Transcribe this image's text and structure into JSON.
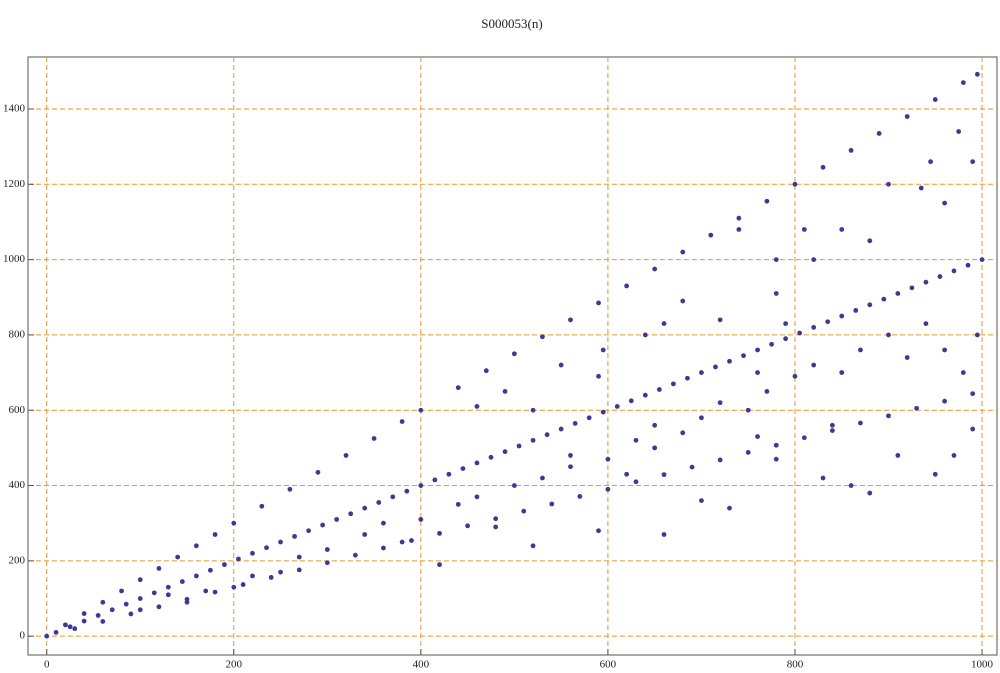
{
  "chart_data": {
    "type": "scatter",
    "title": "S000053(n)",
    "x": [
      0,
      10,
      25,
      40,
      55,
      70,
      85,
      100,
      115,
      130,
      145,
      160,
      175,
      190,
      205,
      220,
      235,
      250,
      265,
      280,
      295,
      310,
      325,
      340,
      355,
      370,
      385,
      400,
      415,
      430,
      445,
      460,
      475,
      490,
      505,
      520,
      535,
      550,
      565,
      580,
      595,
      610,
      625,
      640,
      655,
      670,
      685,
      700,
      715,
      730,
      745,
      760,
      775,
      790,
      805,
      820,
      835,
      850,
      865,
      880,
      895,
      910,
      925,
      940,
      955,
      970,
      985,
      1000,
      20,
      40,
      60,
      80,
      100,
      120,
      140,
      160,
      180,
      200,
      230,
      260,
      290,
      320,
      350,
      380,
      400,
      440,
      470,
      500,
      530,
      560,
      590,
      620,
      650,
      680,
      710,
      740,
      770,
      800,
      830,
      860,
      890,
      920,
      950,
      980,
      995,
      30,
      60,
      90,
      120,
      150,
      180,
      210,
      240,
      270,
      300,
      330,
      360,
      390,
      420,
      450,
      480,
      510,
      540,
      570,
      600,
      630,
      660,
      690,
      720,
      750,
      780,
      810,
      840,
      870,
      900,
      930,
      960,
      990,
      420,
      480,
      520,
      560,
      590,
      620,
      650,
      660,
      700,
      730,
      740,
      780,
      790,
      810,
      820,
      850,
      880,
      900,
      935,
      945,
      960,
      975,
      990,
      460,
      490,
      520,
      550,
      590,
      595,
      640,
      660,
      680,
      720,
      760,
      780,
      300,
      340,
      360,
      380,
      400,
      440,
      460,
      500,
      530,
      560,
      600,
      630,
      650,
      680,
      700,
      720,
      750,
      770,
      800,
      820,
      850,
      870,
      900,
      920,
      940,
      960,
      980,
      995,
      830,
      860,
      910,
      950,
      970,
      990,
      780,
      760,
      840,
      880,
      200,
      220,
      250,
      150,
      100,
      130,
      170,
      270
    ],
    "values": [
      0,
      10,
      25,
      40,
      55,
      70,
      85,
      100,
      115,
      130,
      145,
      160,
      175,
      190,
      205,
      220,
      235,
      250,
      265,
      280,
      295,
      310,
      325,
      340,
      355,
      370,
      385,
      400,
      415,
      430,
      445,
      460,
      475,
      490,
      505,
      520,
      535,
      550,
      565,
      580,
      595,
      610,
      625,
      640,
      655,
      670,
      685,
      700,
      715,
      730,
      745,
      760,
      775,
      790,
      805,
      820,
      835,
      850,
      865,
      880,
      895,
      910,
      925,
      940,
      955,
      970,
      985,
      1000,
      30,
      60,
      90,
      120,
      150,
      180,
      210,
      240,
      270,
      300,
      345,
      390,
      435,
      480,
      525,
      570,
      600,
      660,
      705,
      750,
      795,
      840,
      885,
      930,
      975,
      1020,
      1065,
      1110,
      1155,
      1200,
      1245,
      1290,
      1335,
      1380,
      1425,
      1470,
      1492,
      20,
      39,
      59,
      78,
      98,
      117,
      137,
      156,
      176,
      195,
      215,
      234,
      254,
      273,
      293,
      312,
      332,
      351,
      371,
      390,
      410,
      429,
      449,
      468,
      488,
      507,
      527,
      546,
      566,
      585,
      605,
      624,
      644,
      190,
      290,
      240,
      480,
      280,
      430,
      560,
      270,
      360,
      340,
      1080,
      1000,
      830,
      1080,
      1000,
      1080,
      1050,
      1200,
      1190,
      1260,
      1150,
      1340,
      1260,
      610,
      650,
      600,
      720,
      690,
      760,
      800,
      830,
      890,
      840,
      700,
      910,
      230,
      270,
      300,
      250,
      310,
      350,
      370,
      400,
      420,
      450,
      470,
      520,
      500,
      540,
      580,
      620,
      600,
      650,
      690,
      720,
      700,
      760,
      800,
      740,
      830,
      760,
      700,
      800,
      420,
      400,
      480,
      430,
      480,
      550,
      470,
      530,
      560,
      380,
      130,
      160,
      170,
      90,
      70,
      110,
      120,
      210
    ],
    "color": "#3b3b96",
    "xlim": [
      -20,
      1016
    ],
    "ylim": [
      -50,
      1538
    ],
    "xticks": [
      0,
      200,
      400,
      600,
      800,
      1000
    ],
    "yticks": [
      0,
      200,
      400,
      600,
      800,
      1000,
      1200,
      1400
    ],
    "grid": true
  }
}
